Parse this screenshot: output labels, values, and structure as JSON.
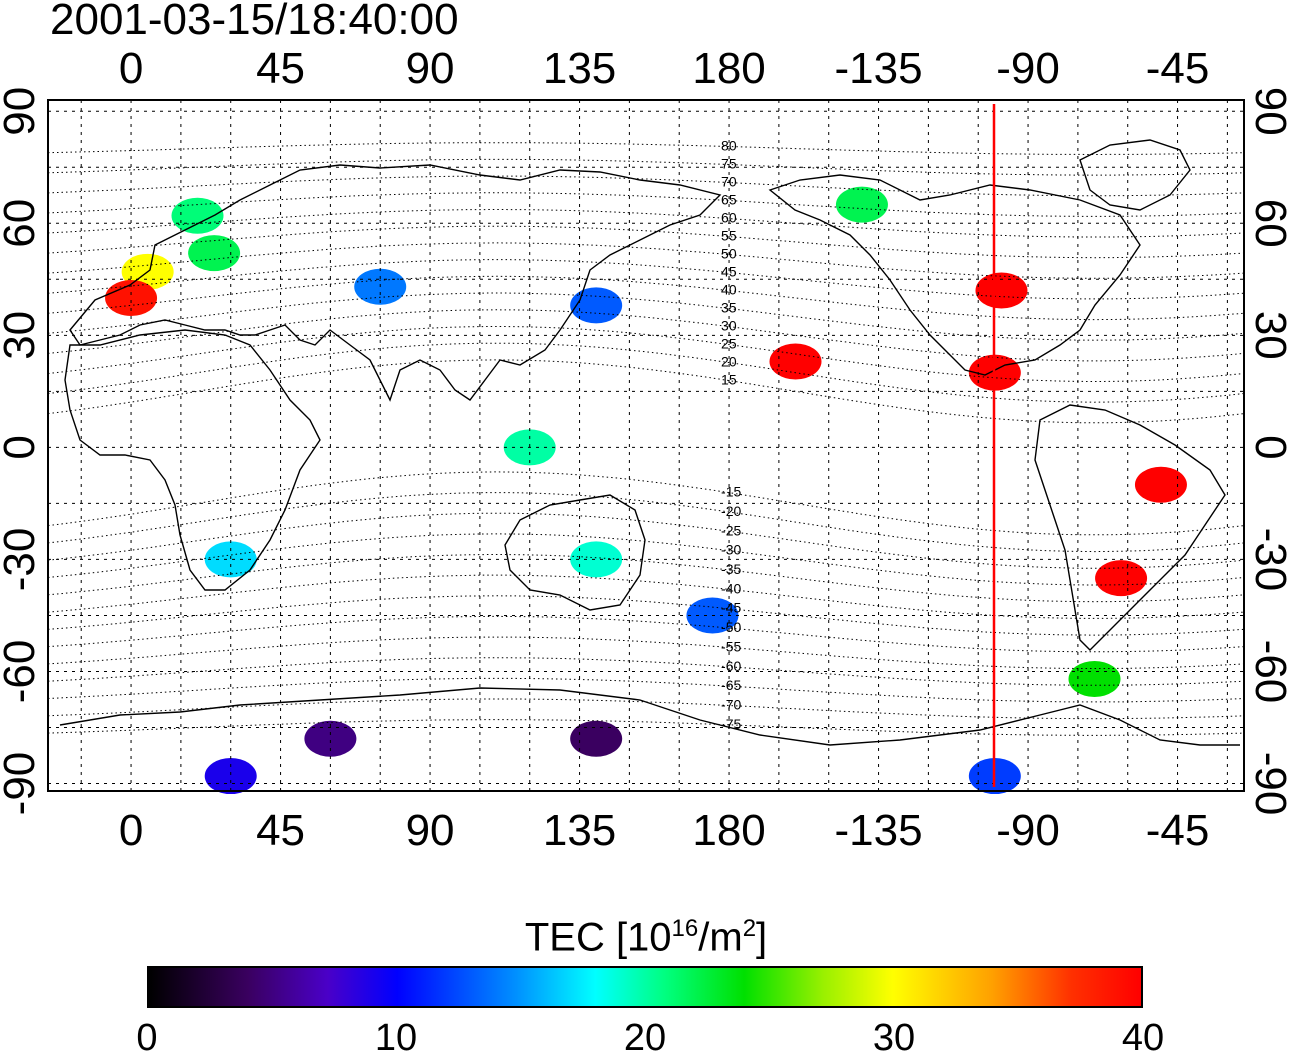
{
  "timestamp": "2001-03-15/18:40:00",
  "axes": {
    "x_tick_labels": [
      "0",
      "45",
      "90",
      "135",
      "180",
      "-135",
      "-90",
      "-45"
    ],
    "y_tick_labels": [
      "90",
      "60",
      "30",
      "0",
      "-30",
      "-60",
      "-90"
    ]
  },
  "contour_labels": [
    "80",
    "75",
    "70",
    "65",
    "60",
    "55",
    "50",
    "45",
    "40",
    "35",
    "30",
    "25",
    "20",
    "15",
    "-15",
    "-20",
    "-25",
    "-30",
    "-35",
    "-40",
    "-45",
    "-50",
    "-55",
    "-60",
    "-65",
    "-70",
    "-75"
  ],
  "colors": {
    "terminator_line": "#ff0000",
    "grid": "#000000"
  },
  "colorbar": {
    "title_main": "TEC  [10",
    "title_sup1": "16",
    "title_mid": "/m",
    "title_sup2": "2",
    "title_end": "]",
    "tick_labels": [
      "0",
      "10",
      "20",
      "30",
      "40"
    ],
    "range": [
      0,
      40
    ]
  },
  "map_data": {
    "projection": "equirectangular",
    "lon_range": [
      -25,
      335
    ],
    "lat_range": [
      -92,
      93
    ],
    "terminator_longitude": -100,
    "tec_patches": [
      {
        "lon": 5,
        "lat": 47,
        "tec": 30
      },
      {
        "lon": 0,
        "lat": 40,
        "tec": 39
      },
      {
        "lon": 25,
        "lat": 52,
        "tec": 22
      },
      {
        "lon": 20,
        "lat": 62,
        "tec": 21
      },
      {
        "lon": 75,
        "lat": 43,
        "tec": 14
      },
      {
        "lon": 140,
        "lat": 38,
        "tec": 13
      },
      {
        "lon": 120,
        "lat": 0,
        "tec": 20
      },
      {
        "lon": 30,
        "lat": -30,
        "tec": 17
      },
      {
        "lon": 140,
        "lat": -30,
        "tec": 19
      },
      {
        "lon": 175,
        "lat": -45,
        "tec": 13
      },
      {
        "lon": -98,
        "lat": 42,
        "tec": 40
      },
      {
        "lon": -100,
        "lat": 20,
        "tec": 40
      },
      {
        "lon": -50,
        "lat": -10,
        "tec": 40
      },
      {
        "lon": -62,
        "lat": -35,
        "tec": 40
      },
      {
        "lon": -70,
        "lat": -62,
        "tec": 24
      },
      {
        "lon": -160,
        "lat": 23,
        "tec": 40
      },
      {
        "lon": -140,
        "lat": 65,
        "tec": 22
      },
      {
        "lon": 60,
        "lat": -78,
        "tec": 5
      },
      {
        "lon": 140,
        "lat": -78,
        "tec": 4
      },
      {
        "lon": 30,
        "lat": -88,
        "tec": 9
      },
      {
        "lon": -100,
        "lat": -88,
        "tec": 12
      }
    ]
  }
}
